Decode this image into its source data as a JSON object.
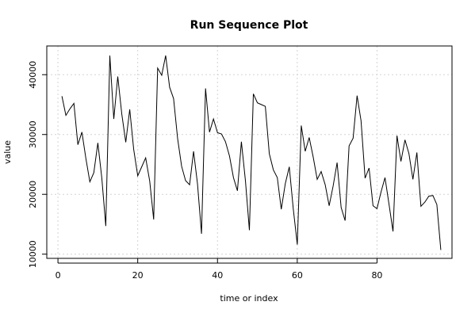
{
  "chart_data": {
    "type": "line",
    "title": "Run Sequence Plot",
    "xlabel": "time or index",
    "ylabel": "value",
    "xlim": [
      -2.8,
      98.8
    ],
    "ylim": [
      9300,
      44800
    ],
    "xticks": [
      0,
      20,
      40,
      60,
      80
    ],
    "yticks": [
      10000,
      20000,
      30000,
      40000
    ],
    "grid": true,
    "series": [
      {
        "x": [
          1,
          2,
          3,
          4,
          5,
          6,
          7,
          8,
          9,
          10,
          11,
          12,
          13,
          14,
          15,
          16,
          17,
          18,
          19,
          20,
          21,
          22,
          23,
          24,
          25,
          26,
          27,
          28,
          29,
          30,
          31,
          32,
          33,
          34,
          35,
          36,
          37,
          38,
          39,
          40,
          41,
          42,
          43,
          44,
          45,
          46,
          47,
          48,
          49,
          50,
          51,
          52,
          53,
          54,
          55,
          56,
          57,
          58,
          59,
          60,
          61,
          62,
          63,
          64,
          65,
          66,
          67,
          68,
          69,
          70,
          71,
          72,
          73,
          74,
          75,
          76,
          77,
          78,
          79,
          80,
          81,
          82,
          83,
          84,
          85,
          86,
          87,
          88,
          89,
          90,
          91,
          92,
          93,
          94,
          95,
          96
        ],
        "values": [
          36400,
          33200,
          34300,
          35200,
          28300,
          30400,
          26000,
          22100,
          23600,
          28600,
          22700,
          14700,
          43200,
          32600,
          39700,
          33400,
          28700,
          34200,
          27500,
          23100,
          24600,
          26100,
          22200,
          15800,
          41100,
          39900,
          43200,
          37900,
          36000,
          29300,
          24700,
          22300,
          21600,
          27200,
          21700,
          13400,
          37700,
          30400,
          32600,
          30300,
          30100,
          28800,
          26400,
          22800,
          20600,
          28800,
          22300,
          14000,
          36800,
          35300,
          35000,
          34700,
          26800,
          24100,
          22800,
          17500,
          21800,
          24600,
          17600,
          11600,
          31500,
          27200,
          29500,
          26200,
          22500,
          23800,
          21600,
          18100,
          21400,
          25300,
          17800,
          15600,
          28100,
          29400,
          36500,
          32300,
          22700,
          24400,
          18100,
          17600,
          20400,
          22800,
          18400,
          13800,
          29800,
          25500,
          29100,
          26800,
          22500,
          27000,
          18000,
          18700,
          19700,
          19800,
          18300,
          10700
        ]
      }
    ]
  }
}
